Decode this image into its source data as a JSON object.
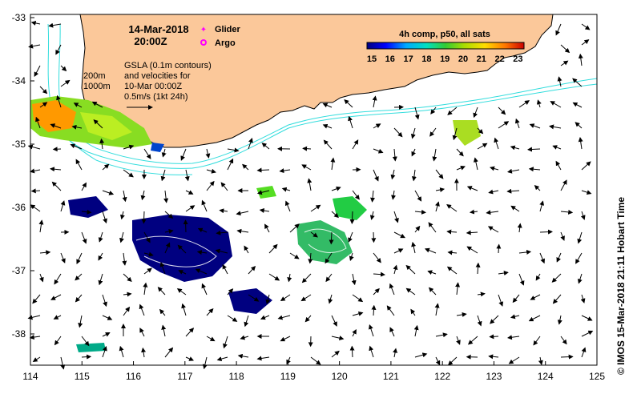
{
  "map": {
    "date_line": "14-Mar-2018",
    "time_line": "20:00Z",
    "legend_glider": "Glider",
    "legend_argo": "Argo",
    "description_lines": [
      "GSLA (0.1m contours)",
      "and velocities for",
      "10-Mar 00:00Z",
      "0.5m/s (1kt 24h)"
    ],
    "depth_labels": [
      "200m",
      "1000m"
    ],
    "colorbar_title": "4h comp, p50, all sats",
    "colorbar_ticks": [
      "15",
      "16",
      "17",
      "18",
      "19",
      "20",
      "21",
      "22",
      "23"
    ],
    "credit": "© IMOS 15-Mar-2018 21:11 Hobart Time",
    "x_ticks": [
      "114",
      "115",
      "116",
      "117",
      "118",
      "119",
      "120",
      "121",
      "122",
      "123",
      "124",
      "125"
    ],
    "y_ticks": [
      "-33",
      "-34",
      "-35",
      "-36",
      "-37",
      "-38"
    ],
    "colors": {
      "land": "#fbc89a",
      "coast": "#000000",
      "isobath": "#33dddd",
      "glider": "#ff00ff",
      "argo": "#ff00ff"
    }
  }
}
